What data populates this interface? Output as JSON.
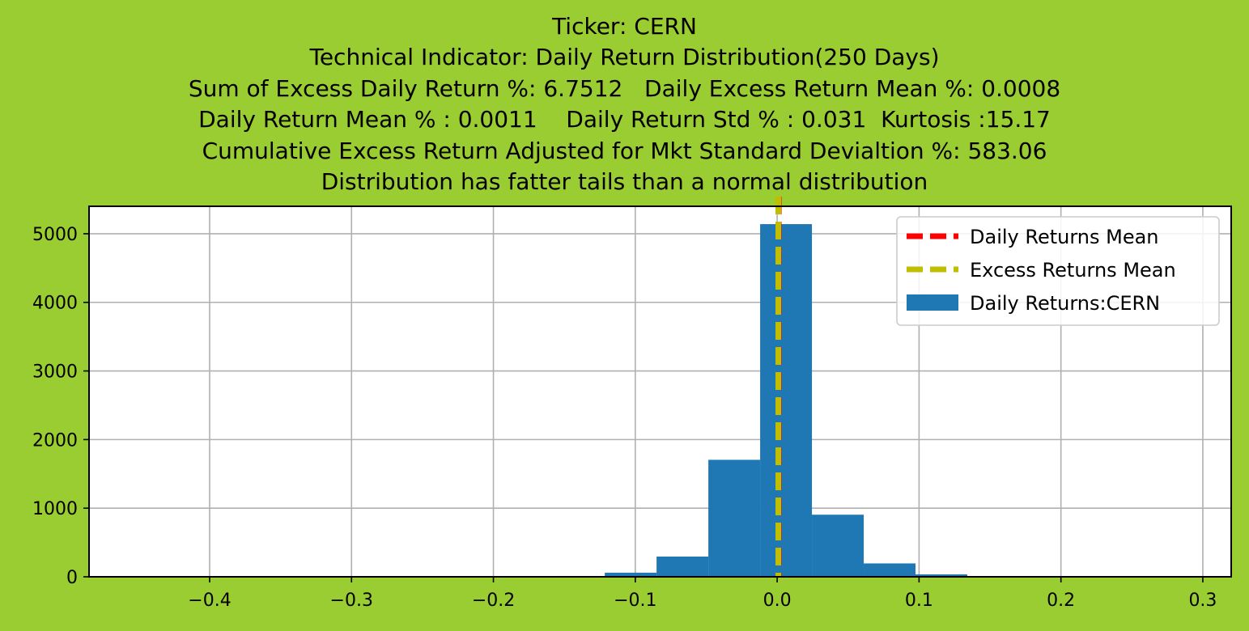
{
  "figure": {
    "background": "#9acd32",
    "title_lines": [
      "Ticker: CERN",
      "Technical Indicator: Daily Return Distribution(250 Days)",
      "Sum of Excess Daily Return %: 6.7512   Daily Excess Return Mean %: 0.0008",
      "Daily Return Mean % : 0.0011    Daily Return Std % : 0.031  Kurtosis :15.17",
      "Cumulative Excess Return Adjusted for Mkt Standard Devialtion %: 583.06",
      "Distribution has fatter tails than a normal distribution"
    ]
  },
  "chart_data": {
    "type": "bar",
    "title": "Ticker: CERN",
    "xlabel": "",
    "ylabel": "",
    "xlim": [
      -0.485,
      0.32
    ],
    "ylim": [
      0,
      5400
    ],
    "grid": true,
    "legend_position": "top-right",
    "x_ticks": [
      {
        "value": -0.4,
        "label": "−0.4"
      },
      {
        "value": -0.3,
        "label": "−0.3"
      },
      {
        "value": -0.2,
        "label": "−0.2"
      },
      {
        "value": -0.1,
        "label": "−0.1"
      },
      {
        "value": 0.0,
        "label": "0.0"
      },
      {
        "value": 0.1,
        "label": "0.1"
      },
      {
        "value": 0.2,
        "label": "0.2"
      },
      {
        "value": 0.3,
        "label": "0.3"
      }
    ],
    "y_ticks": [
      {
        "value": 0,
        "label": "0"
      },
      {
        "value": 1000,
        "label": "1000"
      },
      {
        "value": 2000,
        "label": "2000"
      },
      {
        "value": 3000,
        "label": "3000"
      },
      {
        "value": 4000,
        "label": "4000"
      },
      {
        "value": 5000,
        "label": "5000"
      }
    ],
    "histogram": {
      "name": "Daily Returns:CERN",
      "color": "#1f77b4",
      "bin_edges": [
        -0.158,
        -0.1215,
        -0.085,
        -0.0485,
        -0.012,
        0.0245,
        0.061,
        0.0975,
        0.134
      ],
      "counts": [
        12,
        60,
        295,
        1705,
        5140,
        905,
        195,
        35
      ]
    },
    "mean_lines": [
      {
        "name": "Daily Returns Mean",
        "value": 0.0011,
        "color": "#ff0000"
      },
      {
        "name": "Excess Returns Mean",
        "value": 0.0008,
        "color": "#bfbf00"
      }
    ],
    "legend": [
      {
        "label": "Daily Returns Mean",
        "kind": "dashed-line",
        "color": "#ff0000"
      },
      {
        "label": "Excess Returns Mean",
        "kind": "dashed-line",
        "color": "#bfbf00"
      },
      {
        "label": "Daily Returns:CERN",
        "kind": "patch",
        "color": "#1f77b4"
      }
    ]
  }
}
